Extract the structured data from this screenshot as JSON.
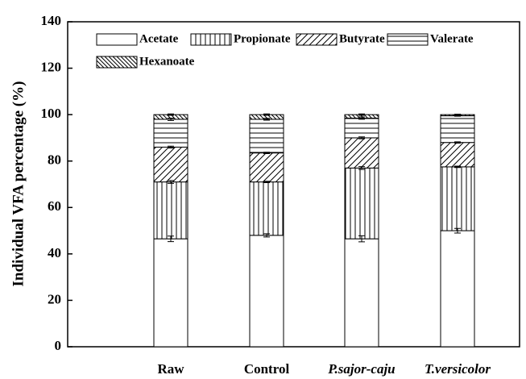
{
  "chart_data": {
    "type": "stacked_bar",
    "y_label": "Individual VFA percentage (%)",
    "categories": [
      "Raw",
      "Control",
      "P.sajor-caju",
      "T.versicolor"
    ],
    "series": [
      {
        "name": "Acetate",
        "color": "#ffffff",
        "pattern": "none",
        "values": [
          46.5,
          48,
          46.5,
          50
        ],
        "errors": [
          1.2,
          0.7,
          1.3,
          1
        ]
      },
      {
        "name": "Propionate",
        "color": "#ffffff",
        "pattern": "vertical",
        "values": [
          24.5,
          23,
          30.5,
          27.5
        ],
        "errors": [
          0.6,
          0.3,
          0.6,
          0.3
        ]
      },
      {
        "name": "Butyrate",
        "color": "#ffffff",
        "pattern": "diagonal",
        "values": [
          15,
          12.5,
          13,
          10.5
        ],
        "errors": [
          0.4,
          0.3,
          0.4,
          0.3
        ]
      },
      {
        "name": "Valerate",
        "color": "#ffffff",
        "pattern": "horizontal",
        "values": [
          12,
          14.5,
          8.5,
          11.5
        ],
        "errors": [
          0.5,
          0.4,
          0.5,
          0.2
        ]
      },
      {
        "name": "Hexanoate",
        "color": "#ffffff",
        "pattern": "backdiagonal",
        "values": [
          2,
          2,
          1.5,
          0.5
        ],
        "errors": [
          0.3,
          0.3,
          0.3,
          0.2
        ]
      }
    ],
    "ylim": [
      0,
      140
    ],
    "yticks": [
      0,
      20,
      40,
      60,
      80,
      100,
      120,
      140
    ]
  }
}
